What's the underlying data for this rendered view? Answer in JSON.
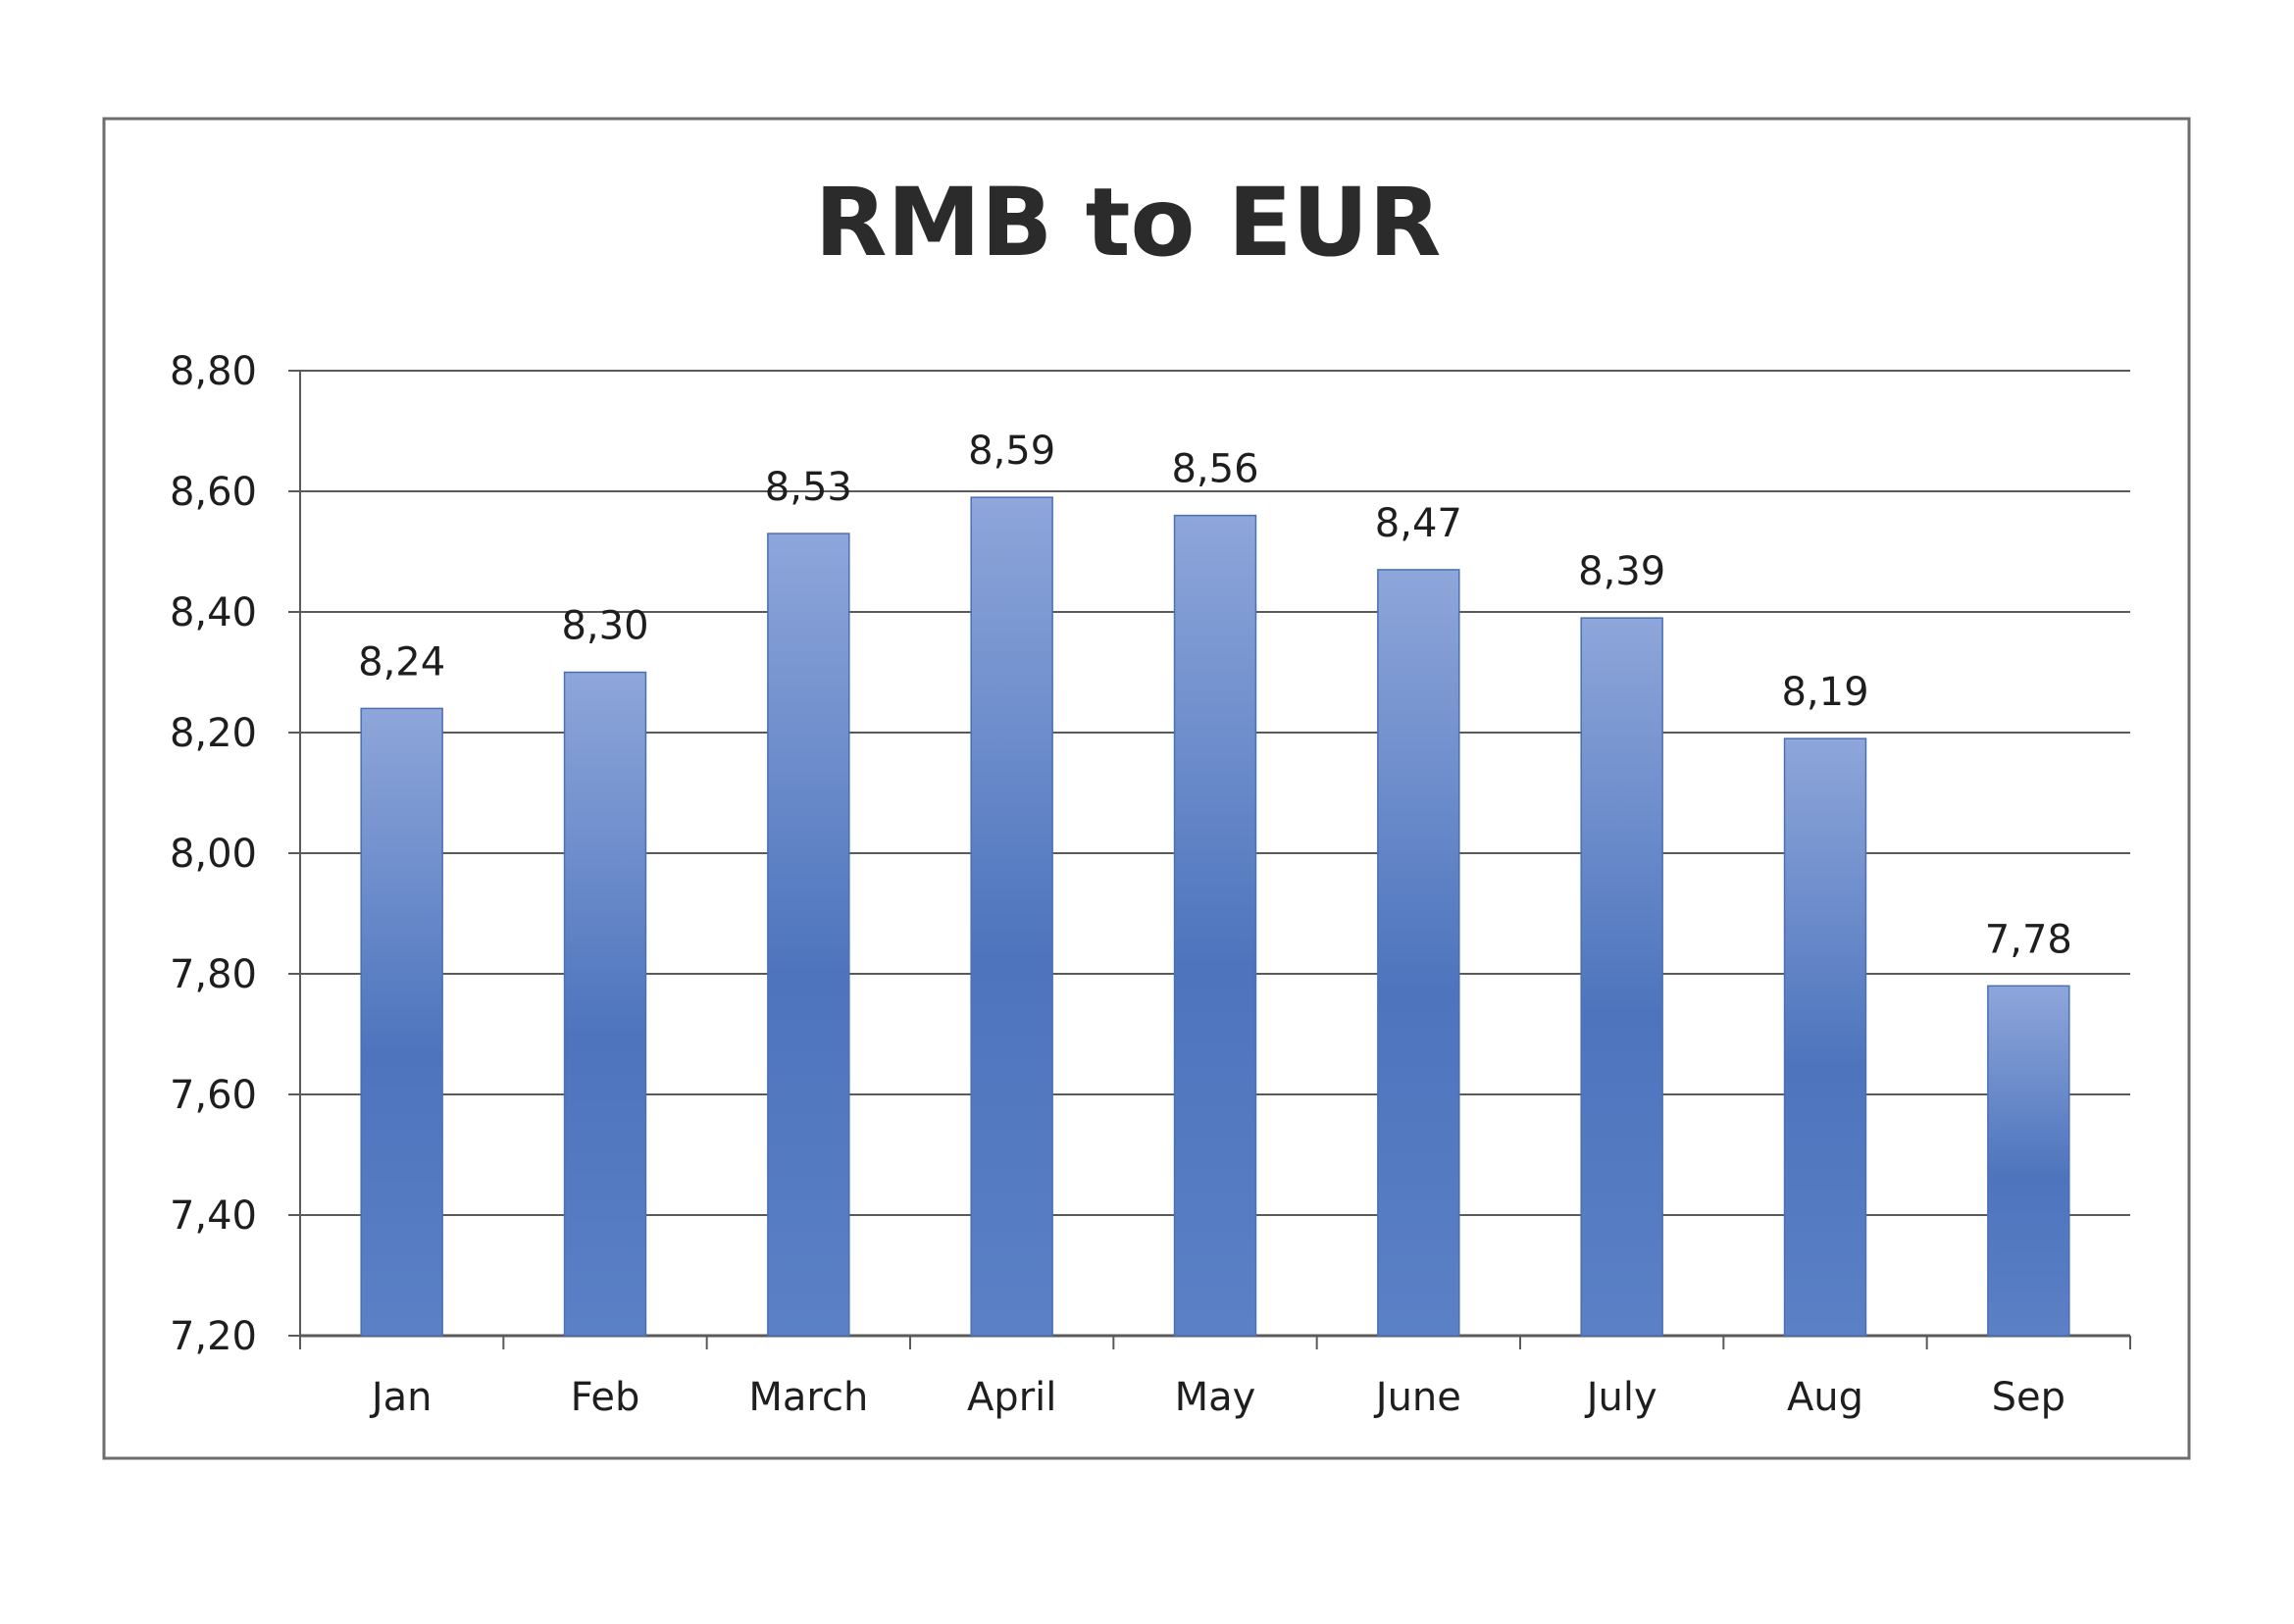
{
  "chart_data": {
    "type": "bar",
    "title": "RMB to EUR",
    "categories": [
      "Jan",
      "Feb",
      "March",
      "April",
      "May",
      "June",
      "July",
      "Aug",
      "Sep"
    ],
    "values": [
      8.24,
      8.3,
      8.53,
      8.59,
      8.56,
      8.47,
      8.39,
      8.19,
      7.78
    ],
    "value_labels": [
      "8,24",
      "8,30",
      "8,53",
      "8,59",
      "8,56",
      "8,47",
      "8,39",
      "8,19",
      "7,78"
    ],
    "y_ticks": [
      7.2,
      7.4,
      7.6,
      7.8,
      8.0,
      8.2,
      8.4,
      8.6,
      8.8
    ],
    "y_tick_labels": [
      "7,20",
      "7,40",
      "7,60",
      "7,80",
      "8,00",
      "8,20",
      "8,40",
      "8,60",
      "8,80"
    ],
    "ylim": [
      7.2,
      8.8
    ],
    "xlabel": "",
    "ylabel": "",
    "grid": true,
    "legend": "none",
    "colors": {
      "bar_edge": "#4a6fb3",
      "bar_light": "#8ea6da",
      "bar_mid": "#4d74bd",
      "gridline": "#5a5a5a",
      "frame": "#6e6e6e",
      "text": "#1e1e1e"
    }
  }
}
